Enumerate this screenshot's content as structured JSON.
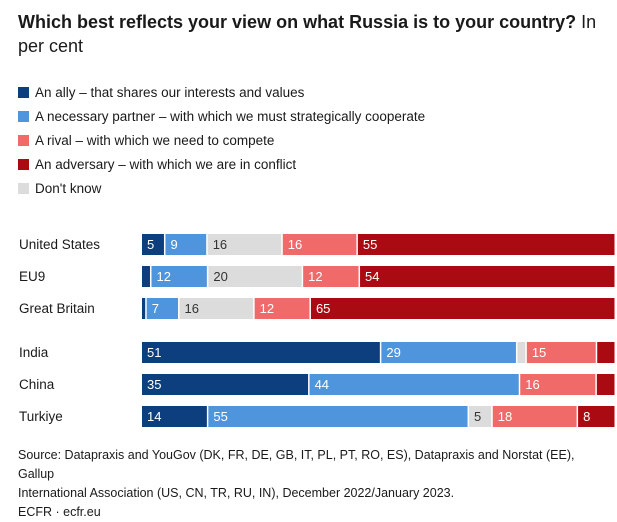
{
  "title": {
    "bold": "Which best reflects your view on what Russia is to your country?",
    "regular": " In per cent"
  },
  "colors": {
    "ally": "#0d3f7f",
    "partner": "#4f95dd",
    "rival": "#f06a6a",
    "adversary": "#aa0b12",
    "dont_know": "#dcdcdc"
  },
  "chart_data": {
    "type": "bar",
    "orientation": "horizontal",
    "stacked": true,
    "title": "Which best reflects your view on what Russia is to your country? In per cent",
    "legend_placement": "top-left",
    "categories": [
      "United States",
      "EU9",
      "Great Britain",
      "India",
      "China",
      "Turkiye"
    ],
    "series": [
      {
        "key": "ally",
        "name": "An ally – that shares our interests and values",
        "color": "#0d3f7f",
        "values": [
          5,
          2,
          1,
          51,
          35,
          14
        ]
      },
      {
        "key": "partner",
        "name": "A necessary partner – with which we must strategically cooperate",
        "color": "#4f95dd",
        "values": [
          9,
          12,
          7,
          29,
          44,
          55
        ]
      },
      {
        "key": "dont_know",
        "name": "Don't know",
        "color": "#dcdcdc",
        "values": [
          16,
          20,
          16,
          2,
          0,
          5
        ]
      },
      {
        "key": "rival",
        "name": "A rival – with which we need to compete",
        "color": "#f06a6a",
        "values": [
          16,
          12,
          12,
          15,
          16,
          18
        ]
      },
      {
        "key": "adversary",
        "name": "An adversary – with which we are in conflict",
        "color": "#aa0b12",
        "values": [
          55,
          54,
          65,
          4,
          4,
          8
        ]
      }
    ],
    "data_labels": [
      [
        "5",
        "9",
        "16",
        "16",
        "55"
      ],
      [
        "",
        "12",
        "20",
        "12",
        "54"
      ],
      [
        "",
        "7",
        "16",
        "12",
        "65"
      ],
      [
        "51",
        "29",
        "",
        "15",
        ""
      ],
      [
        "35",
        "44",
        "",
        "16",
        ""
      ],
      [
        "14",
        "55",
        "5",
        "18",
        "8"
      ]
    ]
  },
  "legend_order": [
    "ally",
    "partner",
    "rival",
    "adversary",
    "dont_know"
  ],
  "source": {
    "line1": "Source: Datapraxis and YouGov (DK, FR, DE, GB, IT, PL, PT, RO, ES), Datapraxis and Norstat (EE), Gallup",
    "line2": "International Association (US, CN, TR, RU, IN), December 2022/January 2023.",
    "line3": "ECFR · ecfr.eu"
  }
}
